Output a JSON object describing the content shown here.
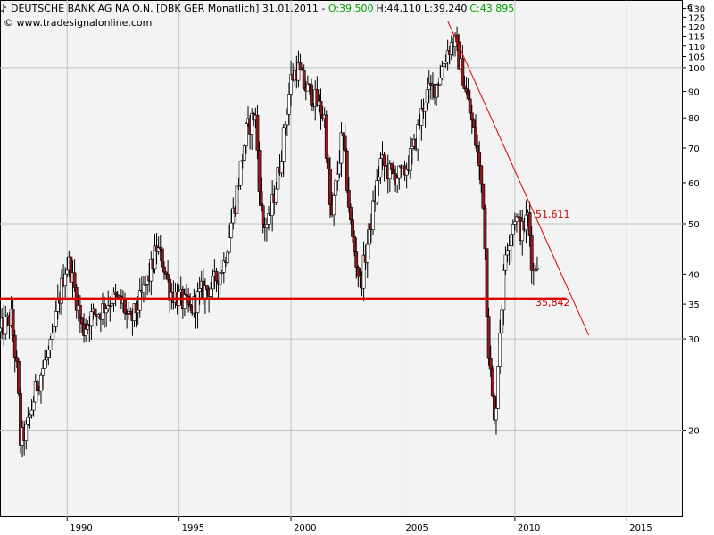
{
  "header": {
    "title": "DEUTSCHE BANK AG NA O.N. [DBK GER  Monatlich] 31.01.2011 - ",
    "open": "O:39,500",
    "high": "H:44,110",
    "low": "L:39,240",
    "close": "C:43,895",
    "copyright": "© www.tradesignalonline.com",
    "currency": "€"
  },
  "colors": {
    "up": "#ffffff",
    "down": "#8b1a1a",
    "wick": "#000000",
    "support": "#e00000",
    "trend": "#e00000",
    "open_color": "#00a000"
  },
  "chart_data": {
    "type": "candlestick",
    "interval": "monthly",
    "yscale": "log",
    "ylim": [
      13.6,
      135
    ],
    "xlim": [
      1987.0,
      2017.5
    ],
    "y_ticks": [
      20,
      30,
      35,
      40,
      50,
      60,
      70,
      80,
      90,
      100,
      105,
      110,
      115,
      120,
      125,
      130
    ],
    "y_tick_labels": [
      "20",
      "30",
      "35",
      "40",
      "50",
      "60",
      "70",
      "80",
      "90",
      "100",
      "105",
      "110",
      "115",
      "120",
      "125",
      "130"
    ],
    "x_ticks": [
      1990,
      1995,
      2000,
      2005,
      2010,
      2015
    ],
    "x_tick_labels": [
      "1990",
      "1995",
      "2000",
      "2005",
      "2010",
      "2015"
    ],
    "grid": true,
    "price_anchors": [
      [
        1987.0,
        31
      ],
      [
        1987.5,
        33
      ],
      [
        1987.8,
        25
      ],
      [
        1987.9,
        19
      ],
      [
        1988.2,
        20
      ],
      [
        1988.6,
        24
      ],
      [
        1989.0,
        27
      ],
      [
        1989.3,
        29
      ],
      [
        1989.6,
        35
      ],
      [
        1989.9,
        41
      ],
      [
        1990.1,
        42
      ],
      [
        1990.3,
        38
      ],
      [
        1990.7,
        31
      ],
      [
        1991.0,
        33
      ],
      [
        1991.5,
        34
      ],
      [
        1992.0,
        36
      ],
      [
        1992.5,
        35
      ],
      [
        1992.8,
        32
      ],
      [
        1993.2,
        35
      ],
      [
        1993.7,
        40
      ],
      [
        1994.0,
        45
      ],
      [
        1994.3,
        42
      ],
      [
        1994.6,
        37
      ],
      [
        1995.0,
        36
      ],
      [
        1995.5,
        34
      ],
      [
        1996.0,
        37
      ],
      [
        1996.5,
        38
      ],
      [
        1997.0,
        42
      ],
      [
        1997.5,
        55
      ],
      [
        1998.0,
        75
      ],
      [
        1998.4,
        82
      ],
      [
        1998.7,
        50
      ],
      [
        1999.0,
        50
      ],
      [
        1999.5,
        65
      ],
      [
        2000.0,
        95
      ],
      [
        2000.3,
        100
      ],
      [
        2000.6,
        92
      ],
      [
        2001.0,
        88
      ],
      [
        2001.5,
        80
      ],
      [
        2001.8,
        50
      ],
      [
        2002.3,
        75
      ],
      [
        2002.7,
        48
      ],
      [
        2003.1,
        38
      ],
      [
        2003.5,
        48
      ],
      [
        2004.0,
        66
      ],
      [
        2004.5,
        62
      ],
      [
        2005.0,
        62
      ],
      [
        2005.5,
        70
      ],
      [
        2006.0,
        88
      ],
      [
        2006.5,
        93
      ],
      [
        2007.0,
        108
      ],
      [
        2007.3,
        113
      ],
      [
        2007.7,
        95
      ],
      [
        2008.0,
        82
      ],
      [
        2008.3,
        70
      ],
      [
        2008.6,
        55
      ],
      [
        2008.8,
        30
      ],
      [
        2009.1,
        20
      ],
      [
        2009.3,
        30
      ],
      [
        2009.6,
        45
      ],
      [
        2010.0,
        52
      ],
      [
        2010.3,
        48
      ],
      [
        2010.6,
        52
      ],
      [
        2010.8,
        40
      ],
      [
        2011.0,
        43
      ]
    ],
    "support_line": {
      "value": 35.842,
      "label": "35,842",
      "x_start": 1987.0,
      "x_end": 2012.3
    },
    "trend_line": {
      "x1": 2007.0,
      "y1": 123,
      "x2": 2013.3,
      "y2": 30.5
    },
    "resistance_label": {
      "value": 51.611,
      "label": "51,611"
    }
  }
}
